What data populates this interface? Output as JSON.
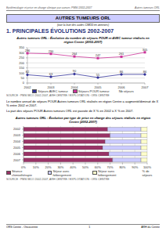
{
  "header": {
    "left": "Epidémiologie et prise en charge clinique par cancer, PMSI 2002-2007",
    "right": "Autres tumeurs ORL"
  },
  "title": "AUTRES TUMEURS ORL",
  "subtitle": "(voir la liste des codes CIM10 en annexes)",
  "section": "1. PRINCIPALES ÉVOLUTIONS 2002-2007",
  "chart_data": [
    {
      "type": "line",
      "title": "Autres tumeurs ORL : Évolution du nombre de séjours POUR et AVEC tumeur réalisés en région Centre (2002-2007)",
      "categories": [
        "2002",
        "2003",
        "2004",
        "2005",
        "2006",
        "2007"
      ],
      "series": [
        {
          "name": "Séjours AVEC tumeur",
          "color": "#333399",
          "marker": "diamond",
          "values": [
            82,
            63,
            90,
            55,
            86,
            86
          ]
        },
        {
          "name": "Séjours POUR tumeur",
          "color": "#cc3399",
          "marker": "square",
          "values": [
            296,
            290,
            264,
            247,
            261,
            305
          ]
        }
      ],
      "y_label": "Nb séjours",
      "ylim": [
        0,
        350
      ],
      "yticks": [
        0,
        50,
        100,
        150,
        200,
        250,
        300,
        350
      ],
      "grid": true,
      "legend": "bottom",
      "data_labels": true,
      "source": "SOURCE : PMSI MCO 2002-2007, ARH CENTRE / EXPLOITATION : ORS CENTRE"
    },
    {
      "type": "bar",
      "title": "Autres tumeurs ORL : Évolution par type de prise en charge des séjours réalisés en région Centre (2002-2007)",
      "categories": [
        "2002",
        "2003",
        "2004",
        "2005",
        "2006",
        "2007"
      ],
      "series": [
        {
          "name": "Séance chimiothérapie",
          "color": "#993366",
          "values": [
            68,
            70,
            66,
            64,
            69,
            72
          ]
        },
        {
          "name": "Séjour avec hébergement",
          "color": "#ccccff",
          "values": [
            27,
            25,
            29,
            31,
            26,
            23
          ]
        },
        {
          "name": "Séjour sans hébergement",
          "color": "#ffffcc",
          "values": [
            5,
            5,
            5,
            5,
            5,
            5
          ]
        }
      ],
      "x_label": "% de séjours",
      "xlim": [
        0,
        100
      ],
      "xticks": [
        {
          "value": 0,
          "label": "0%"
        },
        {
          "value": 10,
          "label": "10%"
        },
        {
          "value": 20,
          "label": "20%"
        },
        {
          "value": 30,
          "label": "30%"
        },
        {
          "value": 40,
          "label": "40%"
        },
        {
          "value": 50,
          "label": "50%"
        },
        {
          "value": 60,
          "label": "60%"
        },
        {
          "value": 70,
          "label": "70%"
        },
        {
          "value": 80,
          "label": "80%"
        },
        {
          "value": 90,
          "label": "90%"
        },
        {
          "value": 100,
          "label": "100%"
        }
      ],
      "orientation": "horizontal",
      "stacked": true,
      "grid": true,
      "legend": "bottom",
      "source": "SOURCE : PMSI MCO 2002-2007, ARH CENTRE / EXPLOITATION : ORS CENTRE"
    }
  ],
  "paragraphs": [
    "Le nombre annuel de séjours POUR Autres tumeurs ORL réalisés en région Centre a augmenté/diminué de X % entre 2002 et 2007.",
    "La part des séjours POUR Autres tumeurs ORL est passée de X % en 2002 à X % en 2007."
  ],
  "footer": {
    "left": "ORS Centre - Oncocentre",
    "center": "1",
    "right": "ARH du Centre"
  }
}
